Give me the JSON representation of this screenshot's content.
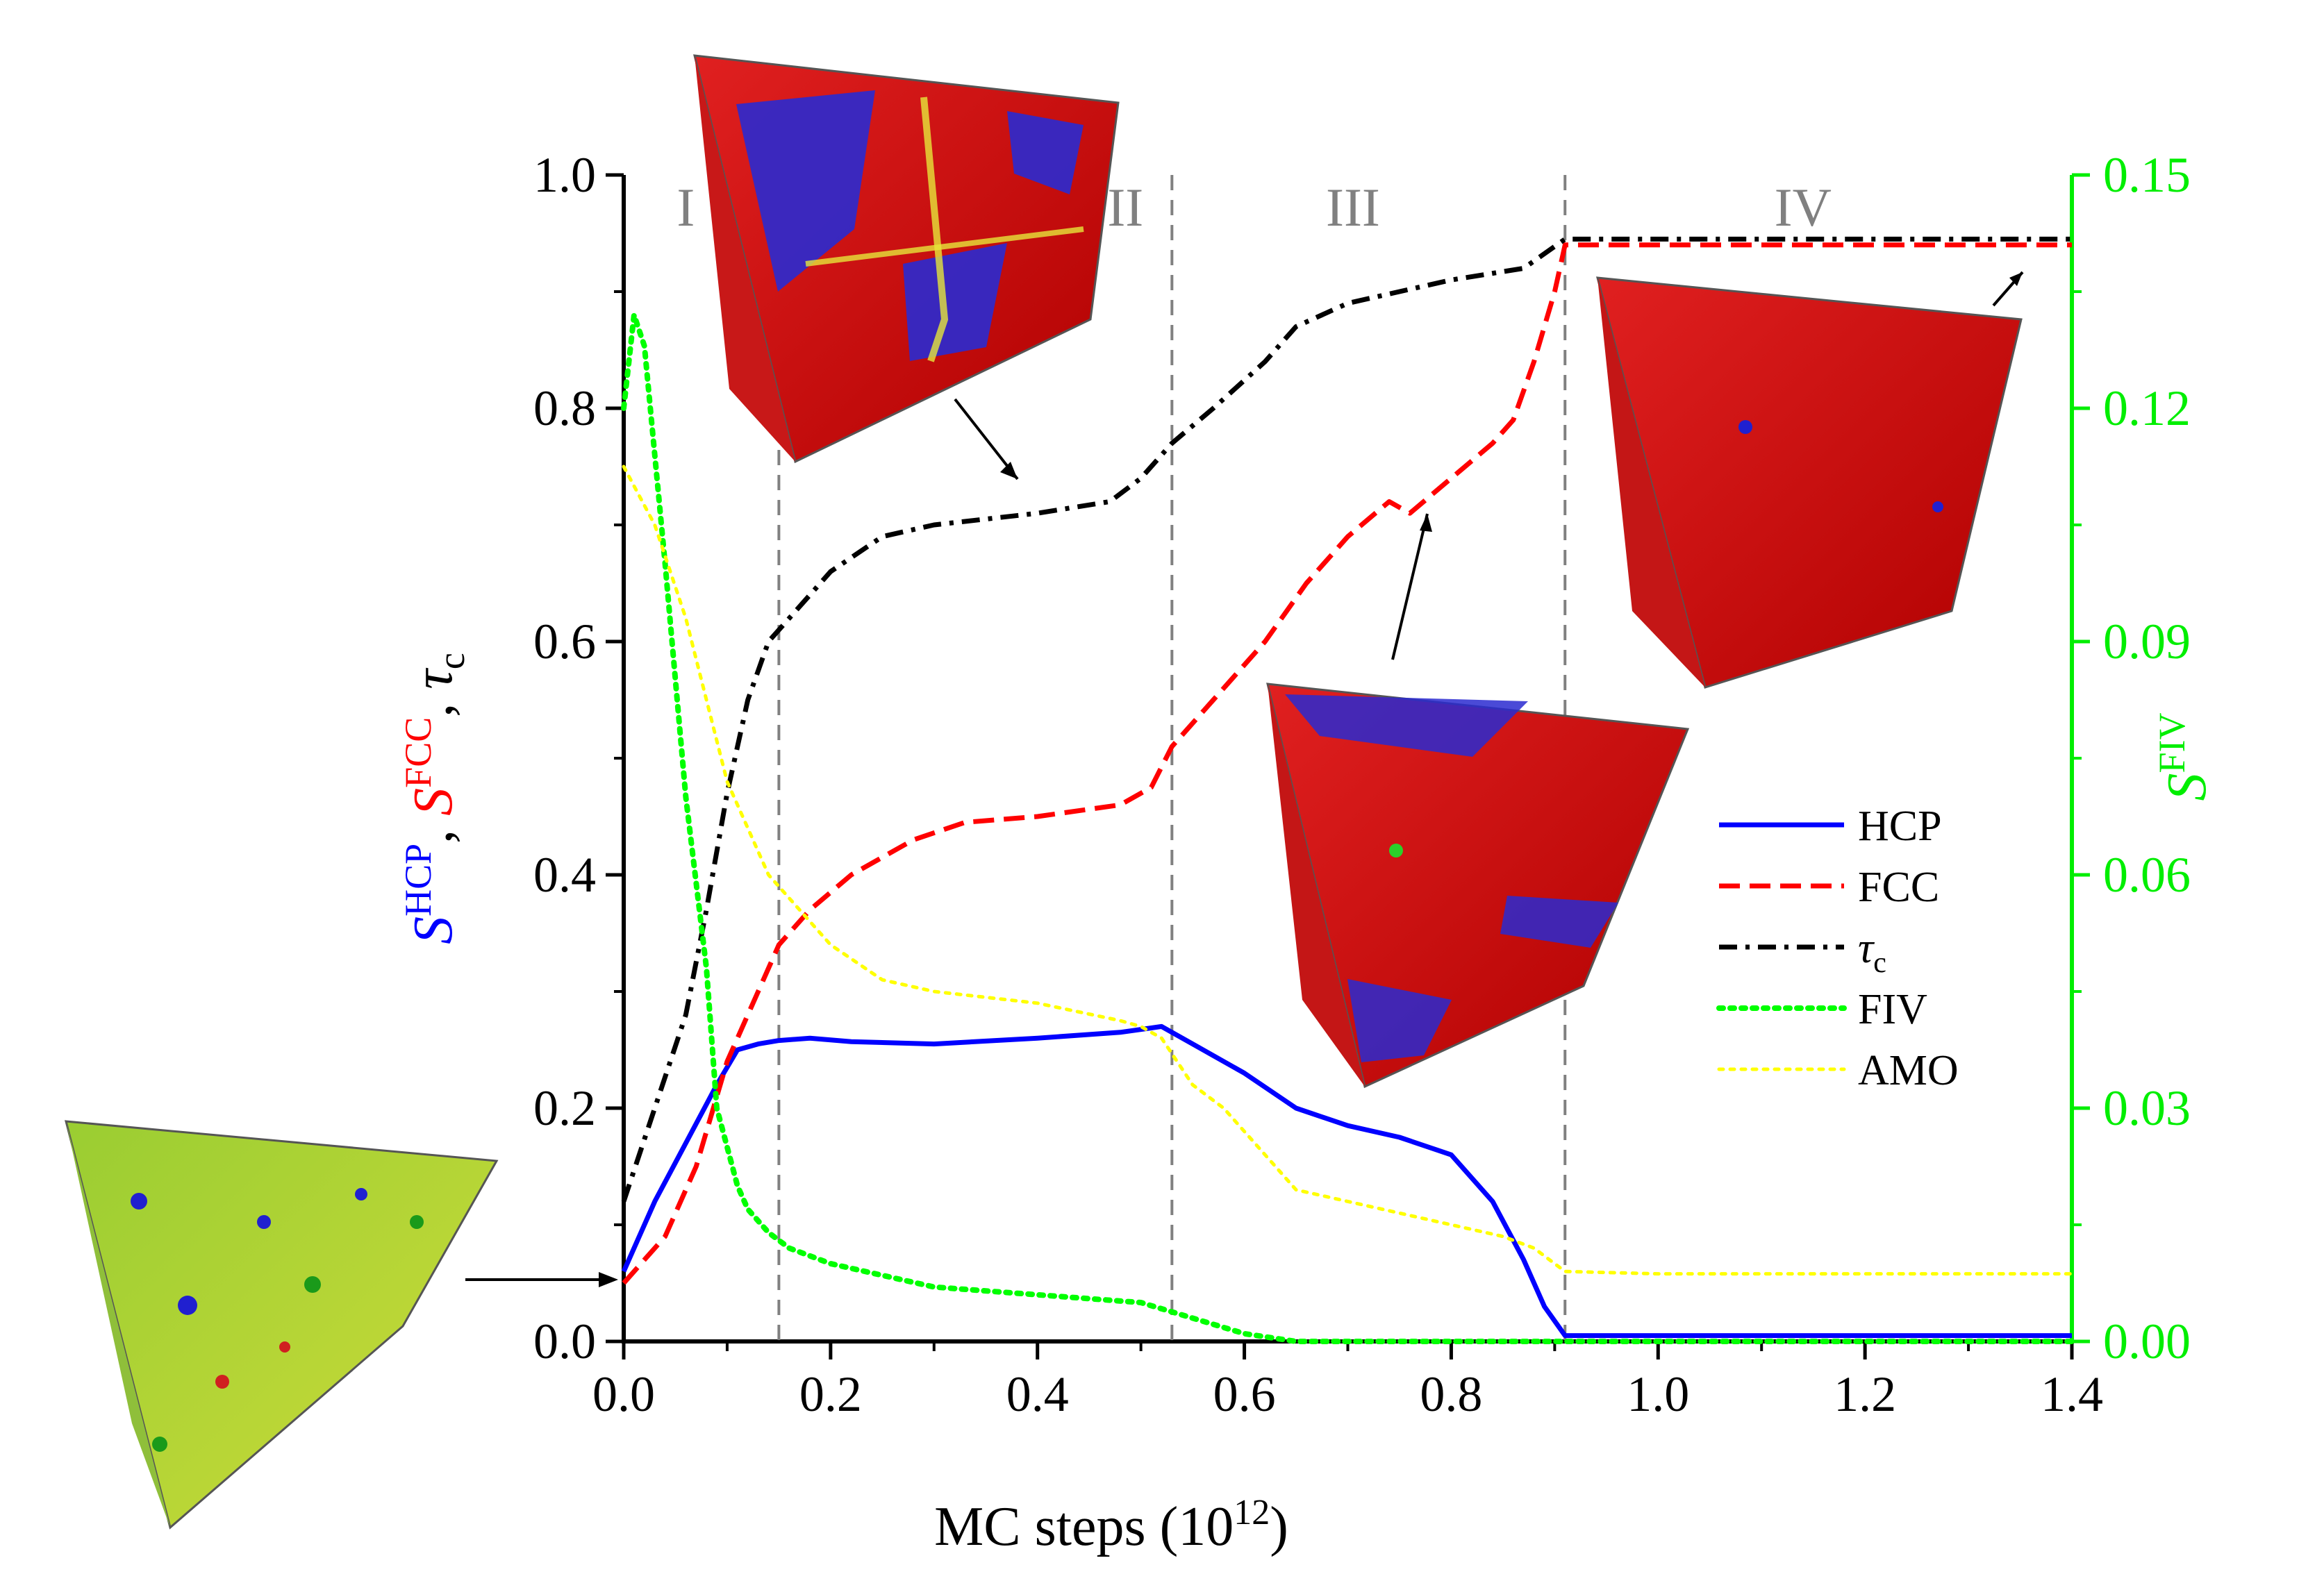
{
  "chart_data": {
    "type": "line",
    "xlabel": "MC steps (10",
    "xlabel_exp": "12",
    "xlabel_end": ")",
    "ylabel_left": {
      "hcp": "S",
      "hcp_sup": "HCP",
      "sep1": ", ",
      "fcc": "S",
      "fcc_sup": "FCC",
      "sep2": ", ",
      "tau": "τ",
      "tau_sub": "c"
    },
    "ylabel_right": {
      "main": "S",
      "sup": "FIV"
    },
    "xlim": [
      0.0,
      1.4
    ],
    "ylim_left": [
      0.0,
      1.0
    ],
    "ylim_right": [
      0.0,
      0.15
    ],
    "x_ticks": [
      "0.0",
      "0.2",
      "0.4",
      "0.6",
      "0.8",
      "1.0",
      "1.2",
      "1.4"
    ],
    "y_left_ticks": [
      "0.0",
      "0.2",
      "0.4",
      "0.6",
      "0.8",
      "1.0"
    ],
    "y_right_ticks": [
      "0.00",
      "0.03",
      "0.06",
      "0.09",
      "0.12",
      "0.15"
    ],
    "regions": [
      {
        "label": "I",
        "x": 0.06
      },
      {
        "label": "II",
        "x": 0.485
      },
      {
        "label": "III",
        "x": 0.705
      },
      {
        "label": "IV",
        "x": 1.14
      }
    ],
    "region_boundaries": [
      0.15,
      0.53,
      0.91
    ],
    "colors": {
      "hcp": "#0000ff",
      "fcc": "#ff0000",
      "tau": "#000000",
      "fiv": "#00ff00",
      "amo": "#ffff00",
      "right_axis": "#00ee00",
      "divider": "#808080"
    },
    "series": [
      {
        "name": "HCP",
        "axis": "left",
        "style": "solid",
        "x": [
          0.0,
          0.03,
          0.06,
          0.09,
          0.11,
          0.13,
          0.15,
          0.18,
          0.22,
          0.3,
          0.4,
          0.48,
          0.52,
          0.55,
          0.6,
          0.65,
          0.7,
          0.75,
          0.8,
          0.84,
          0.87,
          0.89,
          0.91,
          1.0,
          1.2,
          1.4
        ],
        "y": [
          0.06,
          0.12,
          0.17,
          0.22,
          0.25,
          0.255,
          0.258,
          0.26,
          0.257,
          0.255,
          0.26,
          0.265,
          0.27,
          0.255,
          0.23,
          0.2,
          0.185,
          0.175,
          0.16,
          0.12,
          0.07,
          0.03,
          0.005,
          0.005,
          0.005,
          0.005
        ]
      },
      {
        "name": "FCC",
        "axis": "left",
        "style": "dashed",
        "x": [
          0.0,
          0.04,
          0.07,
          0.1,
          0.13,
          0.15,
          0.18,
          0.22,
          0.28,
          0.33,
          0.4,
          0.48,
          0.51,
          0.53,
          0.57,
          0.62,
          0.66,
          0.7,
          0.74,
          0.76,
          0.8,
          0.84,
          0.86,
          0.88,
          0.9,
          0.91,
          1.0,
          1.2,
          1.4
        ],
        "y": [
          0.05,
          0.09,
          0.15,
          0.24,
          0.3,
          0.34,
          0.37,
          0.4,
          0.43,
          0.445,
          0.45,
          0.46,
          0.475,
          0.51,
          0.55,
          0.6,
          0.65,
          0.69,
          0.72,
          0.71,
          0.74,
          0.77,
          0.79,
          0.84,
          0.9,
          0.94,
          0.94,
          0.94,
          0.94
        ]
      },
      {
        "name": "τc",
        "axis": "left",
        "style": "dashdot",
        "x": [
          0.0,
          0.03,
          0.06,
          0.08,
          0.1,
          0.12,
          0.14,
          0.16,
          0.2,
          0.25,
          0.3,
          0.4,
          0.47,
          0.5,
          0.53,
          0.57,
          0.62,
          0.65,
          0.7,
          0.8,
          0.87,
          0.91,
          1.0,
          1.2,
          1.4
        ],
        "y": [
          0.12,
          0.2,
          0.28,
          0.37,
          0.47,
          0.55,
          0.6,
          0.62,
          0.66,
          0.69,
          0.7,
          0.71,
          0.72,
          0.74,
          0.77,
          0.8,
          0.84,
          0.87,
          0.89,
          0.91,
          0.92,
          0.945,
          0.945,
          0.945,
          0.945
        ]
      },
      {
        "name": "FIV",
        "axis": "right",
        "style": "dotted",
        "x": [
          0.0,
          0.01,
          0.02,
          0.04,
          0.06,
          0.08,
          0.09,
          0.1,
          0.11,
          0.12,
          0.14,
          0.16,
          0.2,
          0.3,
          0.4,
          0.5,
          0.55,
          0.6,
          0.65,
          0.7,
          0.8,
          0.91,
          1.0,
          1.2,
          1.4
        ],
        "y": [
          0.12,
          0.132,
          0.128,
          0.1,
          0.07,
          0.048,
          0.03,
          0.025,
          0.02,
          0.017,
          0.014,
          0.012,
          0.01,
          0.007,
          0.006,
          0.005,
          0.003,
          0.001,
          0.0,
          0.0,
          0.0,
          0.0,
          0.0,
          0.0,
          0.0
        ]
      },
      {
        "name": "AMO",
        "axis": "left",
        "style": "dotted",
        "x": [
          0.0,
          0.03,
          0.06,
          0.08,
          0.1,
          0.12,
          0.14,
          0.17,
          0.2,
          0.25,
          0.3,
          0.4,
          0.48,
          0.5,
          0.52,
          0.55,
          0.58,
          0.6,
          0.63,
          0.65,
          0.7,
          0.75,
          0.8,
          0.85,
          0.88,
          0.91,
          1.0,
          1.2,
          1.4
        ],
        "y": [
          0.75,
          0.7,
          0.62,
          0.55,
          0.48,
          0.44,
          0.4,
          0.37,
          0.34,
          0.31,
          0.3,
          0.29,
          0.275,
          0.27,
          0.26,
          0.22,
          0.2,
          0.18,
          0.15,
          0.13,
          0.12,
          0.11,
          0.1,
          0.09,
          0.08,
          0.06,
          0.058,
          0.058,
          0.058
        ]
      }
    ],
    "legend": [
      "HCP",
      "FCC",
      "τc",
      "FIV",
      "AMO"
    ],
    "legend_sub": {
      "τc": "c"
    }
  }
}
